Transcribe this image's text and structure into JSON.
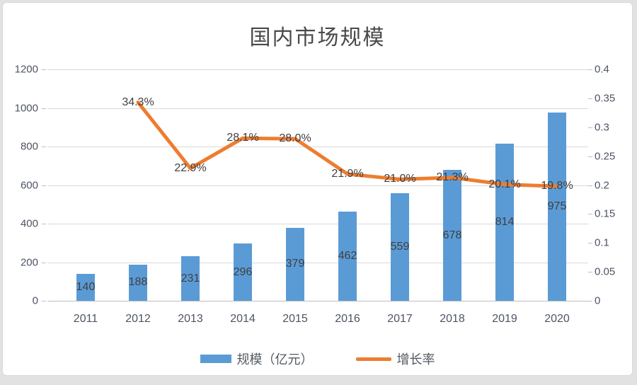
{
  "chart_data": {
    "type": "combo",
    "title": "国内市场规模",
    "categories": [
      "2011",
      "2012",
      "2013",
      "2014",
      "2015",
      "2016",
      "2017",
      "2018",
      "2019",
      "2020"
    ],
    "series": [
      {
        "name": "规模（亿元）",
        "type": "bar",
        "color": "#5b9bd5",
        "axis": "left",
        "values": [
          140,
          188,
          231,
          296,
          379,
          462,
          559,
          678,
          814,
          975
        ],
        "labels": [
          "140",
          "188",
          "231",
          "296",
          "379",
          "462",
          "559",
          "678",
          "814",
          "975"
        ]
      },
      {
        "name": "增长率",
        "type": "line",
        "color": "#ed7d31",
        "axis": "right",
        "values": [
          null,
          0.343,
          0.229,
          0.281,
          0.28,
          0.219,
          0.21,
          0.213,
          0.201,
          0.198
        ],
        "labels": [
          "",
          "34.3%",
          "22.9%",
          "28.1%",
          "28.0%",
          "21.9%",
          "21.0%",
          "21.3%",
          "20.1%",
          "19.8%"
        ]
      }
    ],
    "left_axis": {
      "min": 0,
      "max": 1200,
      "ticks": [
        1200,
        1000,
        800,
        600,
        400,
        200,
        0
      ]
    },
    "right_axis": {
      "min": 0,
      "max": 0.4,
      "ticks": [
        "0.4",
        "0.35",
        "0.3",
        "0.25",
        "0.2",
        "0.15",
        "0.1",
        "0.05",
        "0"
      ]
    },
    "legend_position": "bottom",
    "grid": "horizontal"
  }
}
